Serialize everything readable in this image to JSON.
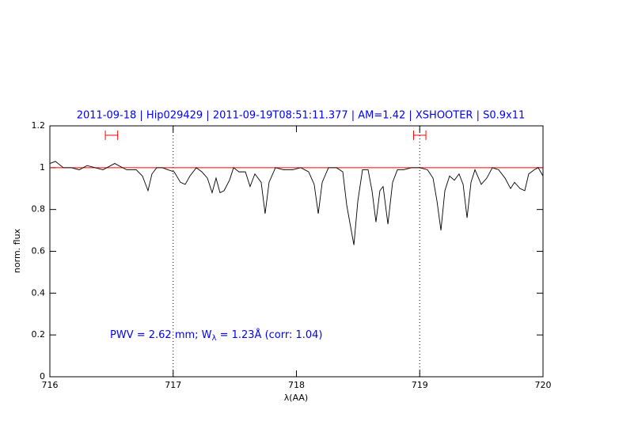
{
  "chart_data": {
    "type": "line",
    "title": "2011-09-18 | Hip029429 | 2011-09-19T08:51:11.377 | AM=1.42 | XSHOOTER | S0.9x11",
    "xlabel": "λ(AA)",
    "ylabel": "norm. flux",
    "annotation": [
      "PWV = 2.62 mm; W",
      "λ",
      " = 1.23Å (corr: 1.04)"
    ],
    "xlim": [
      716,
      720
    ],
    "ylim": [
      0,
      1.2
    ],
    "xticks": [
      716,
      717,
      718,
      719,
      720
    ],
    "yticks": [
      0,
      0.2,
      0.4,
      0.6,
      0.8,
      1,
      1.2
    ],
    "vlines": [
      717,
      719
    ],
    "continuum": 1,
    "continuum_color": "#ff0000",
    "windows": [
      {
        "x": [
          716.45,
          716.55
        ],
        "y": 1.155
      },
      {
        "x": [
          718.95,
          719.05
        ],
        "y": 1.155
      }
    ],
    "series": [
      {
        "color": "#000000",
        "x": [
          716.0,
          716.045,
          716.109,
          716.173,
          716.238,
          716.302,
          716.366,
          716.43,
          716.526,
          716.622,
          716.7,
          716.751,
          716.796,
          716.828,
          716.867,
          716.912,
          716.957,
          717.008,
          717.059,
          717.098,
          717.136,
          717.188,
          717.233,
          717.278,
          717.316,
          717.348,
          717.38,
          717.413,
          717.457,
          717.49,
          717.534,
          717.586,
          717.624,
          717.663,
          717.714,
          717.746,
          717.778,
          717.83,
          717.894,
          717.971,
          718.035,
          718.099,
          718.144,
          718.177,
          718.209,
          718.26,
          718.324,
          718.376,
          718.408,
          718.466,
          718.498,
          718.536,
          718.581,
          718.613,
          718.645,
          718.677,
          718.703,
          718.742,
          718.78,
          718.819,
          718.87,
          718.934,
          718.998,
          719.063,
          719.108,
          719.14,
          719.172,
          719.204,
          719.242,
          719.281,
          719.319,
          719.352,
          719.384,
          719.416,
          719.448,
          719.499,
          719.544,
          719.589,
          719.64,
          719.692,
          719.737,
          719.769,
          719.814,
          719.852,
          719.884,
          719.929,
          719.961,
          720.0
        ],
        "values": [
          1.02,
          1.03,
          1.0,
          1.0,
          0.99,
          1.01,
          1.0,
          0.99,
          1.02,
          0.99,
          0.99,
          0.96,
          0.89,
          0.97,
          1.0,
          1.0,
          0.99,
          0.98,
          0.93,
          0.92,
          0.96,
          1.0,
          0.98,
          0.95,
          0.88,
          0.95,
          0.88,
          0.89,
          0.94,
          1.0,
          0.98,
          0.98,
          0.91,
          0.97,
          0.93,
          0.78,
          0.93,
          1.0,
          0.99,
          0.99,
          1.0,
          0.98,
          0.92,
          0.78,
          0.93,
          1.0,
          1.0,
          0.98,
          0.82,
          0.63,
          0.84,
          0.99,
          0.99,
          0.89,
          0.74,
          0.89,
          0.91,
          0.73,
          0.93,
          0.99,
          0.99,
          1.0,
          1.0,
          0.99,
          0.95,
          0.84,
          0.7,
          0.89,
          0.96,
          0.94,
          0.97,
          0.92,
          0.76,
          0.93,
          0.99,
          0.92,
          0.95,
          1.0,
          0.99,
          0.95,
          0.9,
          0.93,
          0.9,
          0.89,
          0.97,
          0.99,
          1.0,
          0.96
        ]
      }
    ]
  }
}
